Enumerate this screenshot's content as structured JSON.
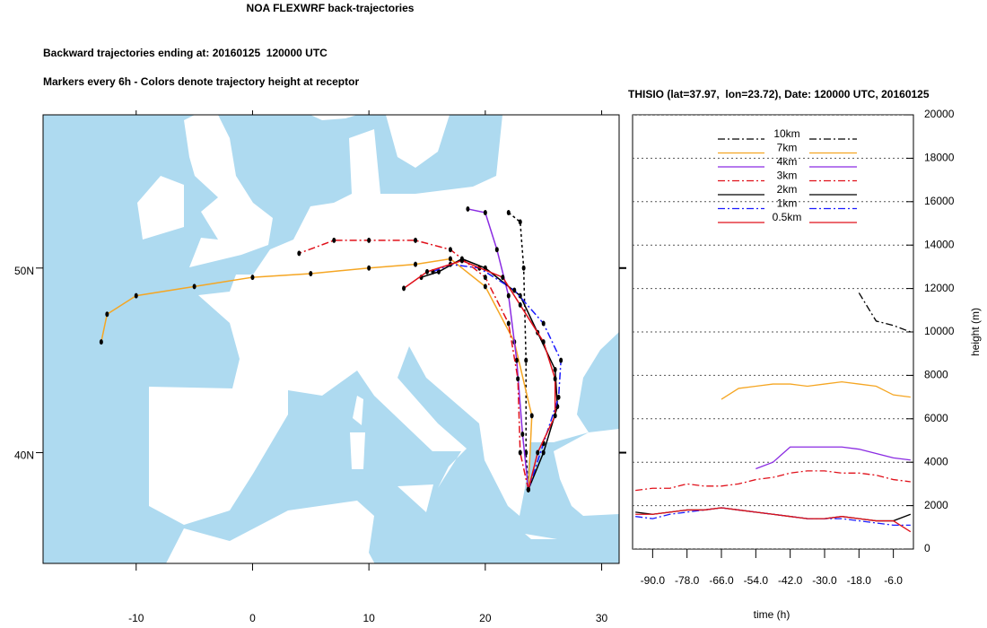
{
  "title": "NOA FLEXWRF back-trajectories",
  "subtitle": "Backward trajectories ending at: 20160125  120000 UTC",
  "note": "Markers every 6h - Colors denote trajectory height at receptor",
  "chart_data": [
    {
      "type": "map",
      "xlim": [
        -18,
        31.5
      ],
      "ylim": [
        34,
        58.3
      ],
      "xticks": [
        -10,
        0,
        10,
        20,
        30
      ],
      "yticks": [
        {
          "value": 40,
          "label": "40N"
        },
        {
          "value": 50,
          "label": "50N"
        }
      ],
      "series": [
        {
          "color": "#000000",
          "style": "dash",
          "x": [
            23.7,
            23.5,
            23.5,
            23.3,
            23,
            22
          ],
          "values": [
            38,
            40,
            45,
            50,
            52.5,
            53
          ]
        },
        {
          "color": "#f5a623",
          "style": "solid",
          "x": [
            23.7,
            24,
            22.5,
            20,
            17,
            14,
            10,
            5,
            0,
            -5,
            -10,
            -12.5,
            -13
          ],
          "values": [
            38,
            42,
            46,
            49,
            50.5,
            50.2,
            50,
            49.7,
            49.5,
            49,
            48.5,
            47.5,
            46
          ]
        },
        {
          "color": "#8a2be2",
          "style": "solid",
          "x": [
            23.7,
            23.2,
            22.7,
            22,
            21,
            20,
            18.5
          ],
          "values": [
            38,
            41,
            45,
            48.5,
            51,
            53,
            53.2
          ]
        },
        {
          "color": "#e0101a",
          "style": "dashdot",
          "x": [
            23.7,
            23,
            22.8,
            22,
            20,
            17,
            14,
            10,
            7,
            4
          ],
          "values": [
            38,
            40,
            44,
            47,
            49.5,
            51,
            51.5,
            51.5,
            51.5,
            50.8
          ]
        },
        {
          "color": "#000000",
          "style": "solid",
          "x": [
            23.7,
            25,
            26.2,
            26,
            24.5,
            23,
            20,
            18,
            16,
            14.5
          ],
          "values": [
            38,
            40,
            42.5,
            44.5,
            46.5,
            48.5,
            50,
            50.5,
            49.8,
            49.5
          ]
        },
        {
          "color": "#1a1aff",
          "style": "dashdot",
          "x": [
            23.7,
            25,
            26.3,
            26.5,
            25,
            22.5,
            19.5,
            17,
            15.5
          ],
          "values": [
            38,
            40.5,
            43,
            45,
            47,
            48.8,
            50,
            50.2,
            49.8
          ]
        },
        {
          "color": "#e0101a",
          "style": "solid",
          "x": [
            23.7,
            24.5,
            26,
            26,
            25,
            23,
            21.5,
            18,
            15,
            13
          ],
          "values": [
            38,
            40,
            42,
            44,
            46,
            48,
            49.5,
            50.4,
            49.8,
            48.9
          ]
        }
      ]
    },
    {
      "type": "line",
      "title": "THISIO (lat=37.97,  lon=23.72), Date: 120000 UTC, 20160125",
      "x_label": "time (h)",
      "y_label": "height (m)",
      "xlim": [
        -97,
        1
      ],
      "ylim": [
        0,
        20000
      ],
      "xticks": [
        {
          "value": -90,
          "label": "-90.0"
        },
        {
          "value": -78,
          "label": "-78.0"
        },
        {
          "value": -66,
          "label": "-66.0"
        },
        {
          "value": -54,
          "label": "-54.0"
        },
        {
          "value": -42,
          "label": "-42.0"
        },
        {
          "value": -30,
          "label": "-30.0"
        },
        {
          "value": -18,
          "label": "-18.0"
        },
        {
          "value": -6,
          "label": "-6.0"
        }
      ],
      "yticks": [
        0,
        2000,
        4000,
        6000,
        8000,
        10000,
        12000,
        14000,
        16000,
        18000,
        20000
      ],
      "grid": true,
      "legend": "top",
      "x": [
        -96,
        -90,
        -84,
        -78,
        -72,
        -66,
        -60,
        -54,
        -48,
        -42,
        -36,
        -30,
        -24,
        -18,
        -12,
        -6,
        0
      ],
      "series": [
        {
          "name": "10km",
          "color": "#000000",
          "style": "dashdot",
          "values": [
            null,
            null,
            null,
            null,
            null,
            null,
            null,
            null,
            null,
            null,
            null,
            null,
            null,
            11800,
            10500,
            10300,
            10000
          ]
        },
        {
          "name": "7km",
          "color": "#f5a623",
          "style": "solid",
          "values": [
            null,
            null,
            null,
            null,
            null,
            6900,
            7400,
            7500,
            7600,
            7600,
            7500,
            7600,
            7700,
            7600,
            7500,
            7100,
            7000
          ]
        },
        {
          "name": "4km",
          "color": "#8a2be2",
          "style": "solid",
          "values": [
            null,
            null,
            null,
            null,
            null,
            null,
            null,
            3700,
            4000,
            4700,
            4700,
            4700,
            4700,
            4600,
            4400,
            4200,
            4100
          ]
        },
        {
          "name": "3km",
          "color": "#e0101a",
          "style": "dashdot",
          "values": [
            2700,
            2800,
            2800,
            3000,
            2900,
            2900,
            3000,
            3200,
            3300,
            3500,
            3600,
            3600,
            3500,
            3500,
            3400,
            3200,
            3100
          ]
        },
        {
          "name": "2km",
          "color": "#000000",
          "style": "solid",
          "values": [
            1700,
            1600,
            1700,
            1800,
            1800,
            1900,
            1800,
            1700,
            1600,
            1500,
            1400,
            1400,
            1500,
            1400,
            1300,
            1300,
            1600
          ]
        },
        {
          "name": "1km",
          "color": "#1a1aff",
          "style": "dashdot",
          "values": [
            1500,
            1400,
            1600,
            1700,
            1800,
            1900,
            1800,
            1700,
            1600,
            1500,
            1400,
            1400,
            1400,
            1300,
            1200,
            1100,
            1100
          ]
        },
        {
          "name": "0.5km",
          "color": "#e0101a",
          "style": "solid",
          "values": [
            1600,
            1600,
            1700,
            1800,
            1800,
            1900,
            1800,
            1700,
            1600,
            1500,
            1400,
            1400,
            1500,
            1400,
            1300,
            1300,
            800
          ]
        }
      ]
    }
  ]
}
